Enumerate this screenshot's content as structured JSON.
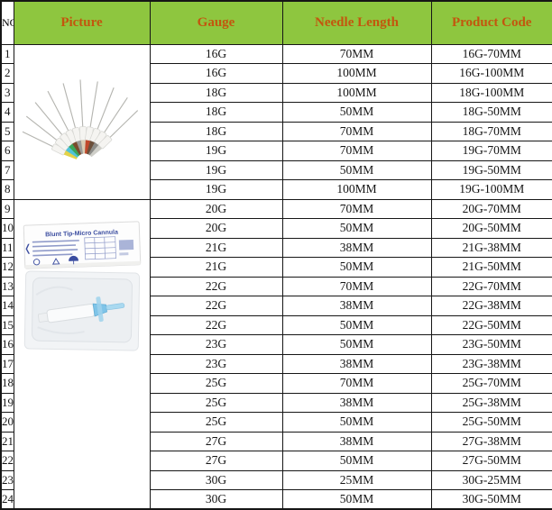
{
  "header": {
    "no": "NO",
    "picture": "Picture",
    "gauge": "Gauge",
    "needle_length": "Needle Length",
    "product_code": "Product Code"
  },
  "rows": [
    {
      "no": "1",
      "gauge": "16G",
      "needle_length": "70MM",
      "product_code": "16G-70MM"
    },
    {
      "no": "2",
      "gauge": "16G",
      "needle_length": "100MM",
      "product_code": "16G-100MM"
    },
    {
      "no": "3",
      "gauge": "18G",
      "needle_length": "100MM",
      "product_code": "18G-100MM"
    },
    {
      "no": "4",
      "gauge": "18G",
      "needle_length": "50MM",
      "product_code": "18G-50MM"
    },
    {
      "no": "5",
      "gauge": "18G",
      "needle_length": "70MM",
      "product_code": "18G-70MM"
    },
    {
      "no": "6",
      "gauge": "19G",
      "needle_length": "70MM",
      "product_code": "19G-70MM"
    },
    {
      "no": "7",
      "gauge": "19G",
      "needle_length": "50MM",
      "product_code": "19G-50MM"
    },
    {
      "no": "8",
      "gauge": "19G",
      "needle_length": "100MM",
      "product_code": "19G-100MM"
    },
    {
      "no": "9",
      "gauge": "20G",
      "needle_length": "70MM",
      "product_code": "20G-70MM"
    },
    {
      "no": "10",
      "gauge": "20G",
      "needle_length": "50MM",
      "product_code": "20G-50MM"
    },
    {
      "no": "11",
      "gauge": "21G",
      "needle_length": "38MM",
      "product_code": "21G-38MM"
    },
    {
      "no": "12",
      "gauge": "21G",
      "needle_length": "50MM",
      "product_code": "21G-50MM"
    },
    {
      "no": "13",
      "gauge": "22G",
      "needle_length": "70MM",
      "product_code": "22G-70MM"
    },
    {
      "no": "14",
      "gauge": "22G",
      "needle_length": "38MM",
      "product_code": "22G-38MM"
    },
    {
      "no": "15",
      "gauge": "22G",
      "needle_length": "50MM",
      "product_code": "22G-50MM"
    },
    {
      "no": "16",
      "gauge": "23G",
      "needle_length": "50MM",
      "product_code": "23G-50MM"
    },
    {
      "no": "17",
      "gauge": "23G",
      "needle_length": "38MM",
      "product_code": "23G-38MM"
    },
    {
      "no": "18",
      "gauge": "25G",
      "needle_length": "70MM",
      "product_code": "25G-70MM"
    },
    {
      "no": "19",
      "gauge": "25G",
      "needle_length": "38MM",
      "product_code": "25G-38MM"
    },
    {
      "no": "20",
      "gauge": "25G",
      "needle_length": "50MM",
      "product_code": "25G-50MM"
    },
    {
      "no": "21",
      "gauge": "27G",
      "needle_length": "38MM",
      "product_code": "27G-38MM"
    },
    {
      "no": "22",
      "gauge": "27G",
      "needle_length": "50MM",
      "product_code": "27G-50MM"
    },
    {
      "no": "23",
      "gauge": "30G",
      "needle_length": "25MM",
      "product_code": "30G-25MM"
    },
    {
      "no": "24",
      "gauge": "30G",
      "needle_length": "50MM",
      "product_code": "30G-50MM"
    }
  ],
  "pictures": {
    "needle_fan": {
      "hub_colors": [
        "#e3d24a",
        "#4fc3d9",
        "#3aa65a",
        "#7a4a2b",
        "#9a9a96",
        "#d9cdb4",
        "#c0492b",
        "#6b4f3a",
        "#8c8c88",
        "#cfcfc9"
      ]
    },
    "cannula_pack": {
      "label": "Blunt Tip-Micro Cannula"
    }
  },
  "colors": {
    "header_bg": "#8ec63f",
    "header_text": "#c3560e",
    "grid": "#161616"
  }
}
